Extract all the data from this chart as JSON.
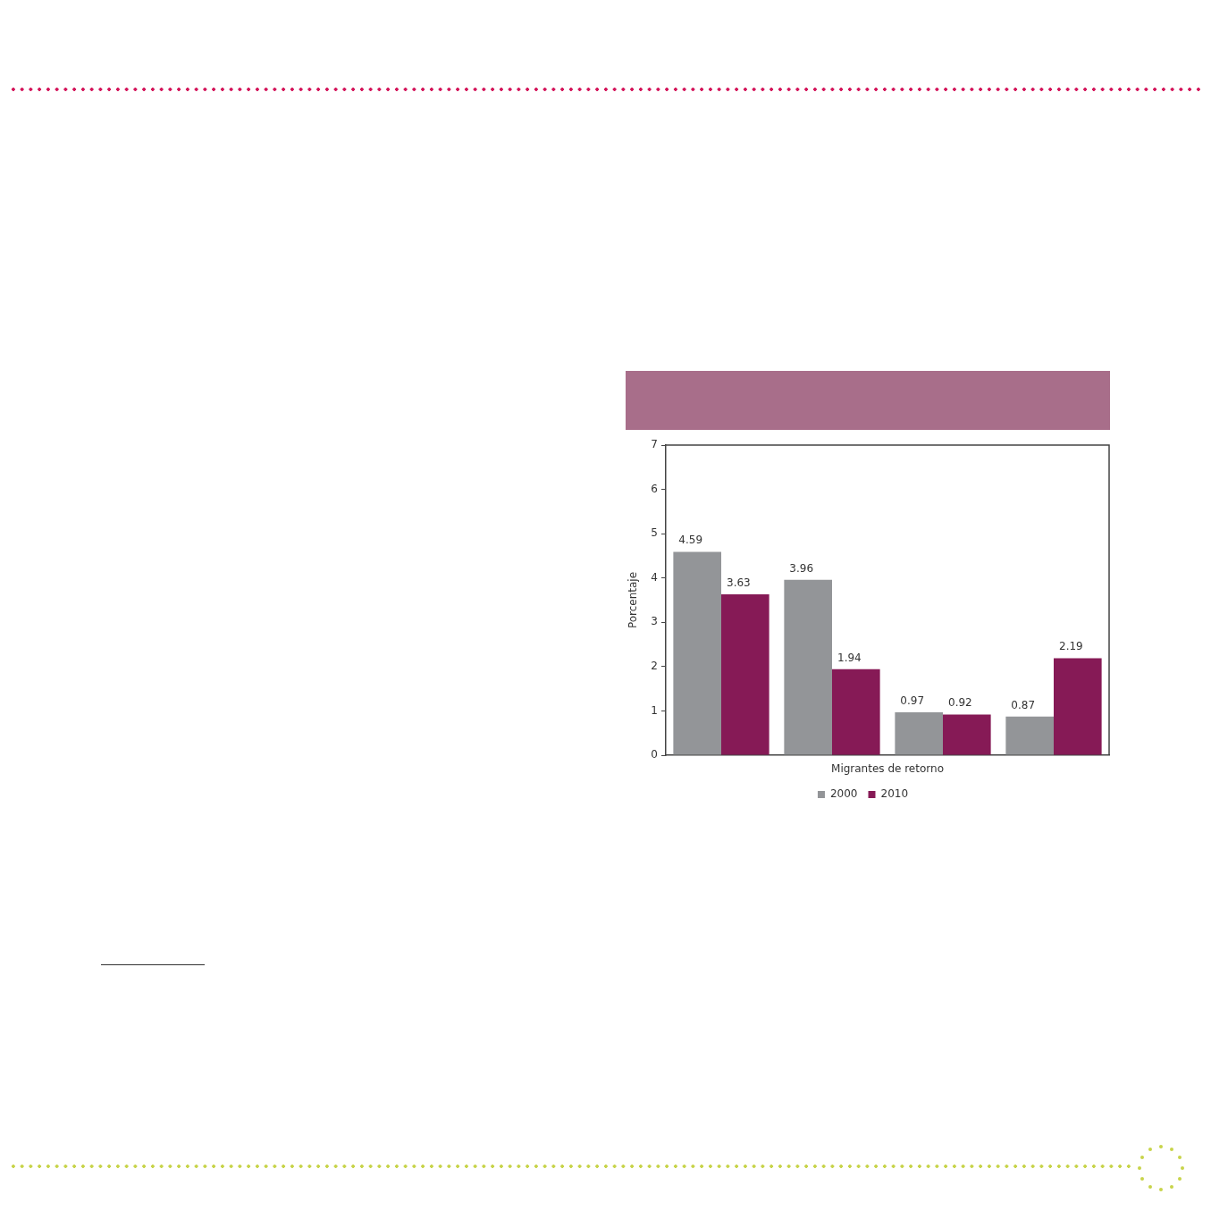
{
  "chart_data": {
    "type": "bar",
    "ylabel": "Porcentaje",
    "xlabel": "Migrantes de retorno",
    "categories": [
      null,
      null,
      null,
      null
    ],
    "series": [
      {
        "name": "2000",
        "color": "#939598",
        "values": [
          4.59,
          3.96,
          0.97,
          0.87
        ]
      },
      {
        "name": "2010",
        "color": "#861a56",
        "values": [
          3.63,
          1.94,
          0.92,
          2.19
        ]
      }
    ],
    "ylim": [
      0,
      7
    ],
    "yticks": [
      0,
      1,
      2,
      3,
      4,
      5,
      6,
      7
    ],
    "grid": false,
    "legend": "bottom",
    "data_labels": true
  }
}
